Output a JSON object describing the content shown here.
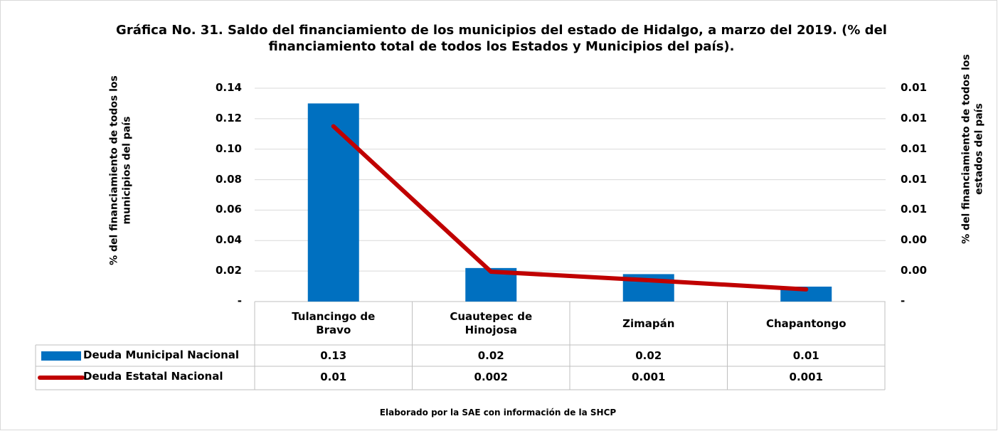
{
  "chart_data": {
    "type": "bar-line",
    "title": "Gráfica No. 31. Saldo del financiamiento de los municipios del estado de Hidalgo, a marzo del 2019. (% del financiamiento total de todos los Estados y Municipios del país).",
    "ylabel": "% del financiamiento  de todos los municipios del país",
    "y2label": "% del financiamiento de todos los estados del país",
    "footnote": "Elaborado por la SAE con información de  la SHCP",
    "categories": [
      "Tulancingo de Bravo",
      "Cuautepec de Hinojosa",
      "Zimapán",
      "Chapantongo"
    ],
    "series": [
      {
        "name": "Deuda Municipal Nacional",
        "type": "bar",
        "color": "#0070c0",
        "values": [
          0.13,
          0.022,
          0.018,
          0.0098
        ],
        "value_labels": [
          "0.13",
          "0.02",
          "0.02",
          "0.01"
        ]
      },
      {
        "name": "Deuda Estatal Nacional",
        "type": "line",
        "axis": "y2",
        "color": "#c00000",
        "values": [
          0.0115,
          0.00196,
          0.0014,
          0.0008
        ],
        "value_labels": [
          "0.01",
          "0.002",
          "0.001",
          "0.001"
        ]
      }
    ],
    "ylim": [
      0,
      0.14
    ],
    "yticks": [
      {
        "value": 0,
        "label": "-"
      },
      0.02,
      0.04,
      0.06,
      0.08,
      {
        "value": 0.1,
        "label": "0.10"
      },
      0.12,
      0.14
    ],
    "y2lim": [
      0,
      0.014
    ],
    "y2ticks": [
      {
        "value": 0,
        "label": "-"
      },
      {
        "value": 0.002,
        "label": "0.00"
      },
      {
        "value": 0.004,
        "label": "0.00"
      },
      {
        "value": 0.006,
        "label": "0.01"
      },
      {
        "value": 0.008,
        "label": "0.01"
      },
      {
        "value": 0.01,
        "label": "0.01"
      },
      {
        "value": 0.012,
        "label": "0.01"
      },
      {
        "value": 0.014,
        "label": "0.01"
      }
    ],
    "grid": true
  }
}
